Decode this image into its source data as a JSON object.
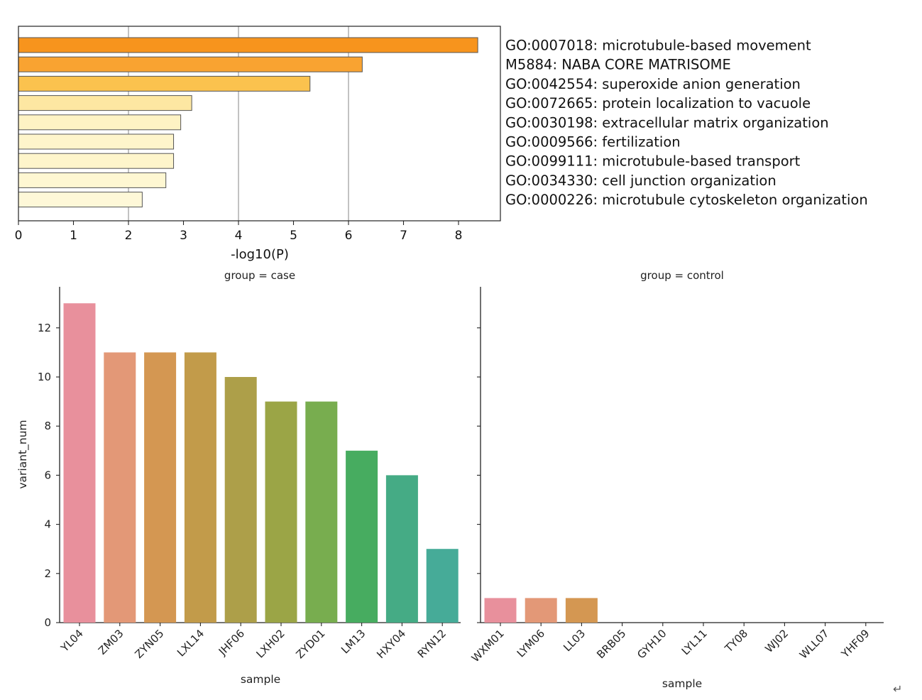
{
  "chart_data": [
    {
      "type": "bar",
      "orientation": "horizontal",
      "xlabel": "-log10(P)",
      "xlim": [
        0,
        8.5
      ],
      "xticks": [
        "0",
        "1",
        "2",
        "3",
        "4",
        "5",
        "6",
        "7",
        "8"
      ],
      "grid": "vertical at 2, 4, 6",
      "categories": [
        "GO:0007018: microtubule-based movement",
        "M5884: NABA CORE MATRISOME",
        "GO:0042554: superoxide anion generation",
        "GO:0072665: protein localization to vacuole",
        "GO:0030198: extracellular matrix organization",
        "GO:0009566: fertilization",
        "GO:0099111: microtubule-based transport",
        "GO:0034330: cell junction organization",
        "GO:0000226: microtubule cytoskeleton organization"
      ],
      "values": [
        8.35,
        6.25,
        5.3,
        3.15,
        2.95,
        2.82,
        2.82,
        2.68,
        2.25
      ],
      "colors": [
        "#f7941d",
        "#f9a331",
        "#fbc24e",
        "#fde7a2",
        "#fef3c4",
        "#fef5cb",
        "#fef5cb",
        "#fef7d2",
        "#fef8d8"
      ]
    },
    {
      "type": "bar",
      "title": "group = case",
      "xlabel": "sample",
      "ylabel": "variant_num",
      "ylim": [
        0,
        13.5
      ],
      "yticks": [
        "0",
        "2",
        "4",
        "6",
        "8",
        "10",
        "12"
      ],
      "categories": [
        "YL04",
        "ZM03",
        "ZYN05",
        "LXL14",
        "JHF06",
        "LXH02",
        "ZYD01",
        "LM13",
        "HXY04",
        "RYN12"
      ],
      "values": [
        13,
        11,
        11,
        11,
        10,
        9,
        9,
        7,
        6,
        3
      ],
      "colors": [
        "#e8909c",
        "#e39877",
        "#d49752",
        "#c29b4a",
        "#ad9f49",
        "#9ba546",
        "#78ad4f",
        "#47ac60",
        "#45ab85",
        "#46ab98"
      ]
    },
    {
      "type": "bar",
      "title": "group = control",
      "xlabel": "sample",
      "ylabel": "",
      "ylim": [
        0,
        13.5
      ],
      "categories": [
        "WXM01",
        "LYM06",
        "LL03",
        "BRB05",
        "GYH10",
        "LYL11",
        "TY08",
        "WJ02",
        "WLL07",
        "YHF09"
      ],
      "values": [
        1,
        1,
        1,
        0,
        0,
        0,
        0,
        0,
        0,
        0
      ],
      "colors": [
        "#e8909c",
        "#e39877",
        "#d49752",
        "#c29b4a",
        "#ad9f49",
        "#9ba546",
        "#78ad4f",
        "#47ac60",
        "#45ab85",
        "#46ab98"
      ]
    }
  ],
  "return_glyph": "↵"
}
